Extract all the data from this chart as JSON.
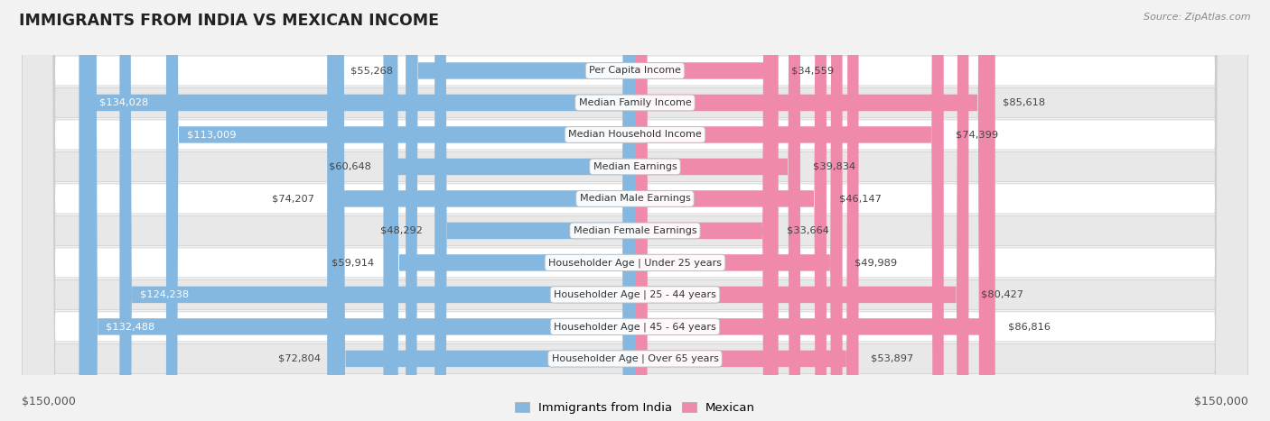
{
  "title": "IMMIGRANTS FROM INDIA VS MEXICAN INCOME",
  "source": "Source: ZipAtlas.com",
  "categories": [
    "Per Capita Income",
    "Median Family Income",
    "Median Household Income",
    "Median Earnings",
    "Median Male Earnings",
    "Median Female Earnings",
    "Householder Age | Under 25 years",
    "Householder Age | 25 - 44 years",
    "Householder Age | 45 - 64 years",
    "Householder Age | Over 65 years"
  ],
  "india_values": [
    55268,
    134028,
    113009,
    60648,
    74207,
    48292,
    59914,
    124238,
    132488,
    72804
  ],
  "mexican_values": [
    34559,
    85618,
    74399,
    39834,
    46147,
    33664,
    49989,
    80427,
    86816,
    53897
  ],
  "india_color": "#85b8e0",
  "mexican_color": "#f08aaa",
  "max_value": 150000,
  "india_label": "Immigrants from India",
  "mexican_label": "Mexican",
  "india_text_white": [
    false,
    true,
    true,
    false,
    false,
    false,
    false,
    true,
    true,
    false
  ],
  "background_color": "#f2f2f2",
  "row_colors": [
    "#ffffff",
    "#e8e8e8"
  ]
}
